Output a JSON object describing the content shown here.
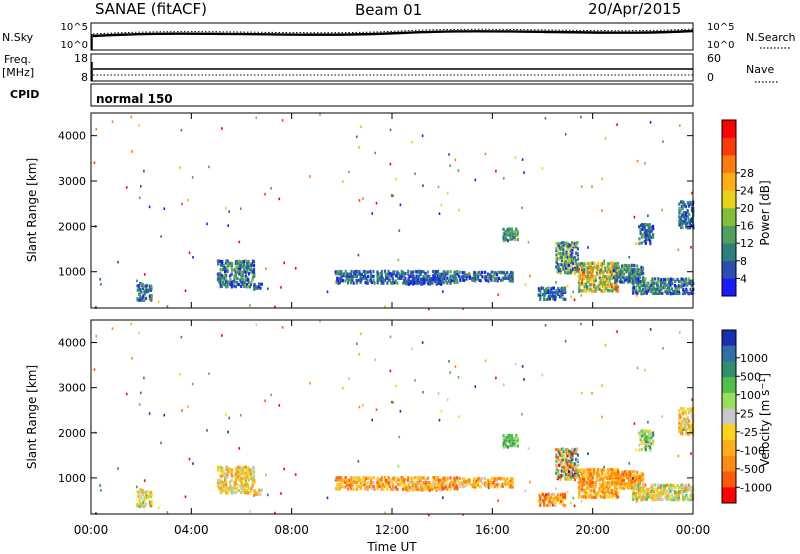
{
  "header": {
    "station": "SANAE (fitACF)",
    "beam": "Beam 01",
    "date": "20/Apr/2015"
  },
  "panels": {
    "nsky_label": "N.Sky",
    "nsky_ticks": [
      "10^5",
      "10^0"
    ],
    "nsearch_label": "N.Search",
    "nsearch_ticks": [
      "10^5",
      "10^0"
    ],
    "freq_label": "Freq.",
    "freq_unit": "[MHz]",
    "freq_ticks": [
      "18",
      "8"
    ],
    "nave_label": "Nave",
    "nave_ticks": [
      "60",
      "0"
    ],
    "cpid_label": "CPID",
    "cpid_value": "normal 150"
  },
  "chart_data": [
    {
      "type": "heatmap",
      "name": "power",
      "xlabel": "",
      "ylabel": "Slant Range [km]",
      "x_range_hours": [
        0,
        24
      ],
      "ylim": [
        200,
        4500
      ],
      "y_ticks": [
        1000,
        2000,
        3000,
        4000
      ],
      "colorbar": {
        "label": "Power [dB]",
        "ticks": [
          "4",
          "8",
          "12",
          "16",
          "20",
          "24",
          "28"
        ],
        "colors": [
          "#1a1aff",
          "#2a4fb0",
          "#2e7f7a",
          "#4fa060",
          "#7fbf3a",
          "#e8d21a",
          "#ffae1a",
          "#ff7a10",
          "#ff3a0a",
          "#ff0000"
        ]
      },
      "clusters": [
        {
          "t": [
            5.0,
            6.5
          ],
          "r": [
            700,
            1300
          ],
          "level": [
            0,
            4
          ]
        },
        {
          "t": [
            6.4,
            6.8
          ],
          "r": [
            650,
            800
          ],
          "level": [
            0,
            2
          ]
        },
        {
          "t": [
            9.7,
            14.6
          ],
          "r": [
            780,
            1070
          ],
          "level": [
            0,
            3
          ]
        },
        {
          "t": [
            12.5,
            14.0
          ],
          "r": [
            760,
            900
          ],
          "level": [
            0,
            2
          ]
        },
        {
          "t": [
            14.6,
            16.8
          ],
          "r": [
            830,
            1050
          ],
          "level": [
            0,
            3
          ]
        },
        {
          "t": [
            16.4,
            17.0
          ],
          "r": [
            1700,
            2000
          ],
          "level": [
            1,
            4
          ]
        },
        {
          "t": [
            17.8,
            18.9
          ],
          "r": [
            420,
            700
          ],
          "level": [
            0,
            3
          ]
        },
        {
          "t": [
            18.5,
            19.4
          ],
          "r": [
            1000,
            1700
          ],
          "level": [
            0,
            5
          ]
        },
        {
          "t": [
            19.4,
            21.0
          ],
          "r": [
            600,
            1250
          ],
          "level": [
            2,
            8
          ]
        },
        {
          "t": [
            20.8,
            22.0
          ],
          "r": [
            800,
            1200
          ],
          "level": [
            0,
            4
          ]
        },
        {
          "t": [
            21.5,
            24.0
          ],
          "r": [
            550,
            900
          ],
          "level": [
            0,
            4
          ]
        },
        {
          "t": [
            21.8,
            22.4
          ],
          "r": [
            1650,
            2100
          ],
          "level": [
            0,
            3
          ]
        },
        {
          "t": [
            23.4,
            24.0
          ],
          "r": [
            2000,
            2600
          ],
          "level": [
            0,
            3
          ]
        },
        {
          "t": [
            1.8,
            2.4
          ],
          "r": [
            400,
            800
          ],
          "level": [
            0,
            3
          ]
        }
      ]
    },
    {
      "type": "heatmap",
      "name": "velocity",
      "xlabel": "Time UT",
      "ylabel": "Slant Range [km]",
      "x_range_hours": [
        0,
        24
      ],
      "x_ticks": [
        "00:00",
        "04:00",
        "08:00",
        "12:00",
        "16:00",
        "20:00",
        "00:00"
      ],
      "ylim": [
        200,
        4500
      ],
      "y_ticks": [
        1000,
        2000,
        3000,
        4000
      ],
      "colorbar": {
        "label": "Velocity [m s^-1]",
        "ticks": [
          "1000",
          "500",
          "100",
          "25",
          "-25",
          "-100",
          "-500",
          "-1000"
        ],
        "colors": [
          "#1a2fb0",
          "#2e6fa8",
          "#2f8f6a",
          "#4fbf4a",
          "#9adf5a",
          "#c8c8c8",
          "#ffd21a",
          "#ffae1a",
          "#ff8a10",
          "#ff5a0a",
          "#ff0000"
        ]
      },
      "clusters": [
        {
          "t": [
            5.0,
            6.5
          ],
          "r": [
            700,
            1300
          ],
          "level": [
            4,
            8
          ]
        },
        {
          "t": [
            6.4,
            6.8
          ],
          "r": [
            650,
            800
          ],
          "level": [
            5,
            8
          ]
        },
        {
          "t": [
            9.7,
            14.6
          ],
          "r": [
            780,
            1070
          ],
          "level": [
            5,
            9
          ]
        },
        {
          "t": [
            12.5,
            14.0
          ],
          "r": [
            760,
            900
          ],
          "level": [
            5,
            9
          ]
        },
        {
          "t": [
            14.6,
            16.8
          ],
          "r": [
            830,
            1050
          ],
          "level": [
            5,
            9
          ]
        },
        {
          "t": [
            16.4,
            17.0
          ],
          "r": [
            1700,
            2000
          ],
          "level": [
            2,
            4
          ]
        },
        {
          "t": [
            17.8,
            18.9
          ],
          "r": [
            420,
            700
          ],
          "level": [
            5,
            10
          ]
        },
        {
          "t": [
            18.5,
            19.4
          ],
          "r": [
            1000,
            1700
          ],
          "level": [
            0,
            10
          ]
        },
        {
          "t": [
            19.4,
            21.0
          ],
          "r": [
            600,
            1250
          ],
          "level": [
            6,
            9
          ]
        },
        {
          "t": [
            20.8,
            22.0
          ],
          "r": [
            800,
            1200
          ],
          "level": [
            6,
            9
          ]
        },
        {
          "t": [
            21.5,
            24.0
          ],
          "r": [
            550,
            900
          ],
          "level": [
            3,
            8
          ]
        },
        {
          "t": [
            21.8,
            22.4
          ],
          "r": [
            1650,
            2100
          ],
          "level": [
            2,
            6
          ]
        },
        {
          "t": [
            23.4,
            24.0
          ],
          "r": [
            2000,
            2600
          ],
          "level": [
            4,
            8
          ]
        },
        {
          "t": [
            1.8,
            2.4
          ],
          "r": [
            400,
            800
          ],
          "level": [
            3,
            7
          ]
        }
      ]
    }
  ]
}
